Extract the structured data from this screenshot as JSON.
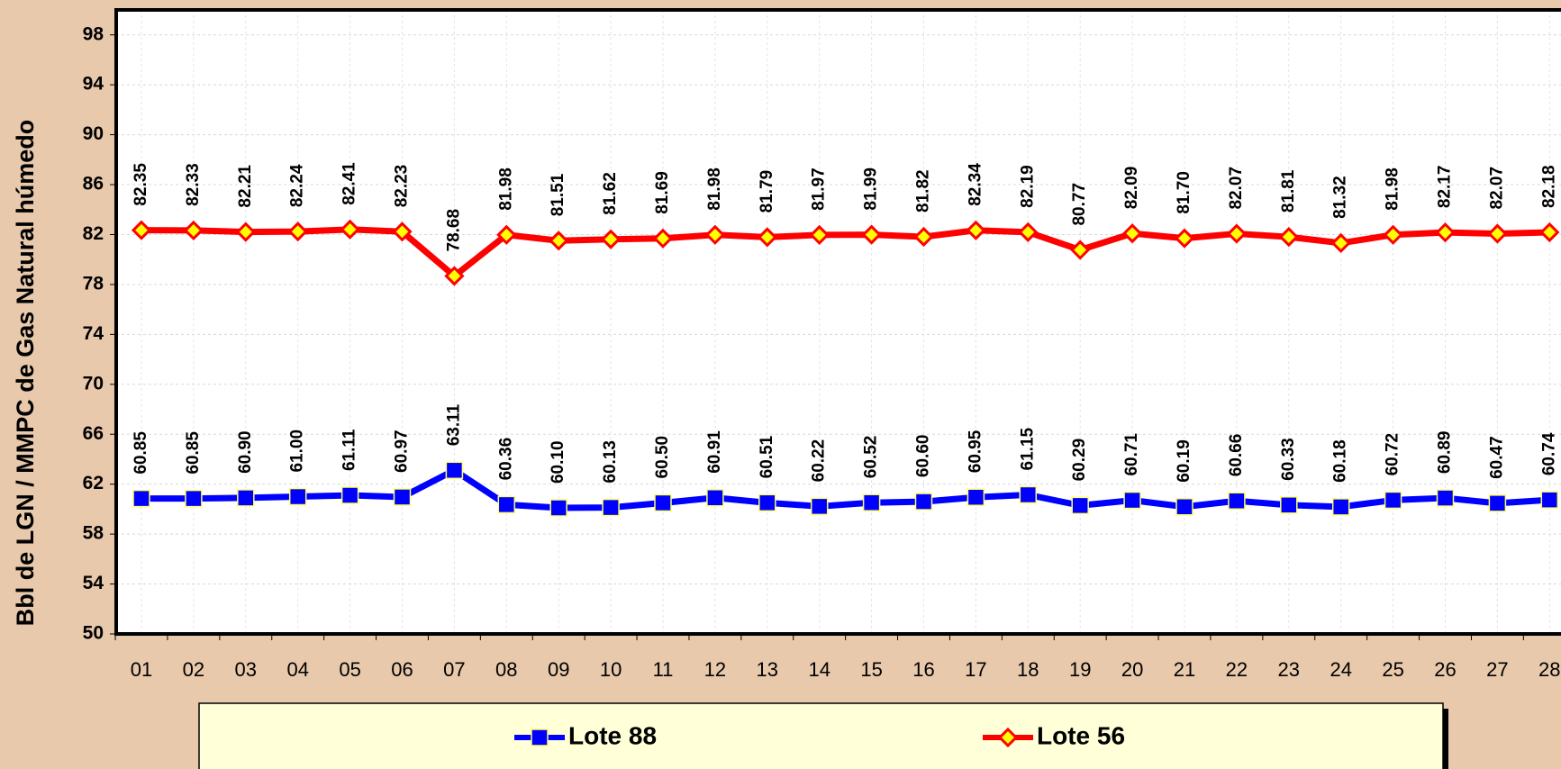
{
  "chart_data": {
    "type": "line",
    "y_label": "Bbl de LGN / MMPC de Gas Natural húmedo",
    "categories": [
      "01",
      "02",
      "03",
      "04",
      "05",
      "06",
      "07",
      "08",
      "09",
      "10",
      "11",
      "12",
      "13",
      "14",
      "15",
      "16",
      "17",
      "18",
      "19",
      "20",
      "21",
      "22",
      "23",
      "24",
      "25",
      "26",
      "27",
      "28"
    ],
    "series": [
      {
        "name": "Lote 88",
        "color": "#0000ff",
        "marker": "square",
        "values": [
          60.85,
          60.85,
          60.9,
          61.0,
          61.11,
          60.97,
          63.11,
          60.36,
          60.1,
          60.13,
          60.5,
          60.91,
          60.51,
          60.22,
          60.52,
          60.6,
          60.95,
          61.15,
          60.29,
          60.71,
          60.19,
          60.66,
          60.33,
          60.18,
          60.72,
          60.89,
          60.47,
          60.74
        ],
        "value_labels": [
          "60.85",
          "60.85",
          "60.90",
          "61.00",
          "61.11",
          "60.97",
          "63.11",
          "60.36",
          "60.10",
          "60.13",
          "60.50",
          "60.91",
          "60.51",
          "60.22",
          "60.52",
          "60.60",
          "60.95",
          "61.15",
          "60.29",
          "60.71",
          "60.19",
          "60.66",
          "60.33",
          "60.18",
          "60.72",
          "60.89",
          "60.47",
          "60.74"
        ]
      },
      {
        "name": "Lote 56",
        "color": "#ff0000",
        "marker": "diamond",
        "values": [
          82.35,
          82.33,
          82.21,
          82.24,
          82.41,
          82.23,
          78.68,
          81.98,
          81.51,
          81.62,
          81.69,
          81.98,
          81.79,
          81.97,
          81.99,
          81.82,
          82.34,
          82.19,
          80.77,
          82.09,
          81.7,
          82.07,
          81.81,
          81.32,
          81.98,
          82.17,
          82.07,
          82.18
        ],
        "value_labels": [
          "82.35",
          "82.33",
          "82.21",
          "82.24",
          "82.41",
          "82.23",
          "78.68",
          "81.98",
          "81.51",
          "81.62",
          "81.69",
          "81.98",
          "81.79",
          "81.97",
          "81.99",
          "81.82",
          "82.34",
          "82.19",
          "80.77",
          "82.09",
          "81.70",
          "82.07",
          "81.81",
          "81.32",
          "81.98",
          "82.17",
          "82.07",
          "82.18"
        ]
      }
    ],
    "ylim": [
      50,
      100
    ],
    "yticks": [
      50,
      54,
      58,
      62,
      66,
      70,
      74,
      78,
      82,
      86,
      90,
      94,
      98
    ],
    "grid": true
  }
}
